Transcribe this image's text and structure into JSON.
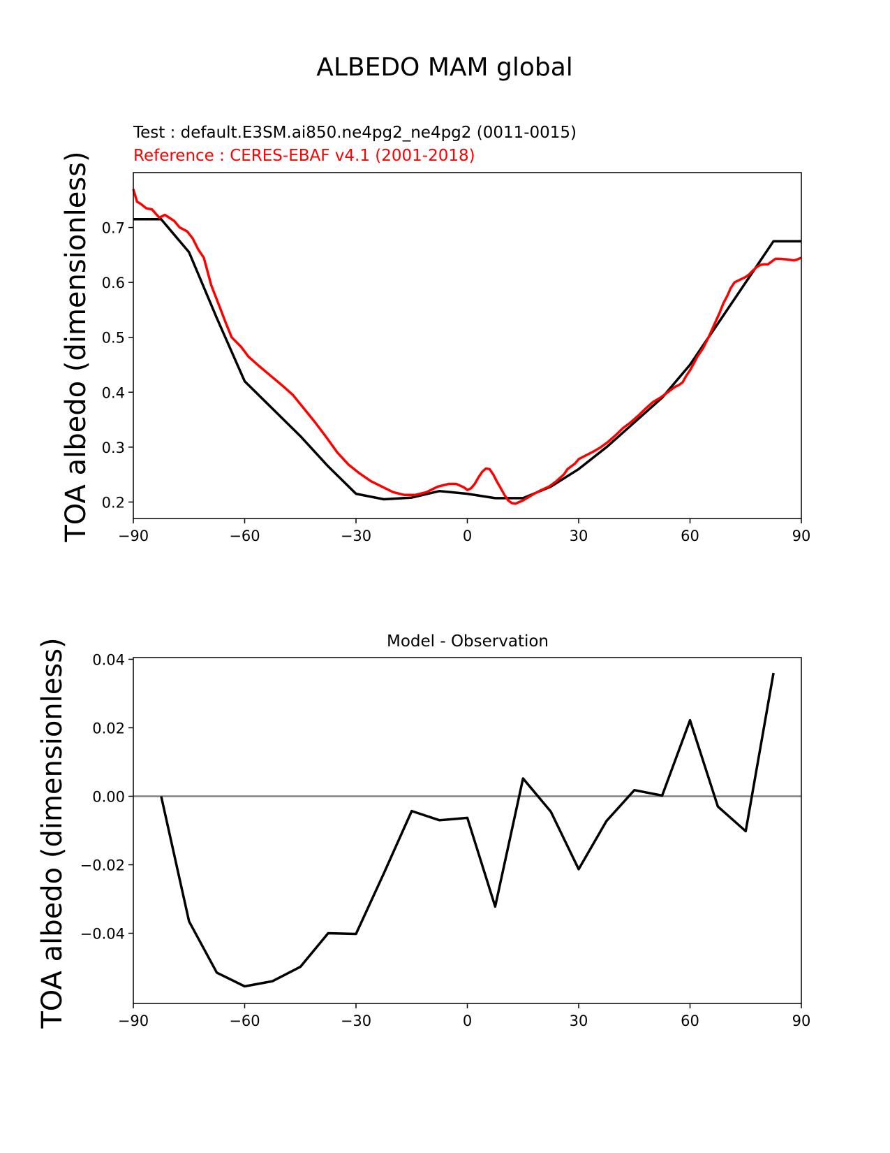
{
  "figure_title": "ALBEDO MAM global",
  "colors": {
    "test": "#000000",
    "reference": "#ff0000",
    "zero_line": "#808080"
  },
  "chart_data": [
    {
      "type": "line",
      "test_label": "Test : default.E3SM.ai850.ne4pg2_ne4pg2 (0011-0015)",
      "reference_label": "Reference : CERES-EBAF v4.1 (2001-2018)",
      "xlabel": "",
      "ylabel": "TOA albedo (dimensionless)",
      "xlim": [
        -90,
        90
      ],
      "ylim": [
        0.17,
        0.8
      ],
      "xticks": [
        -90,
        -60,
        -30,
        0,
        30,
        60,
        90
      ],
      "xtick_labels": [
        "−90",
        "−60",
        "−30",
        "0",
        "30",
        "60",
        "90"
      ],
      "yticks": [
        0.2,
        0.3,
        0.4,
        0.5,
        0.6,
        0.7
      ],
      "ytick_labels": [
        "0.2",
        "0.3",
        "0.4",
        "0.5",
        "0.6",
        "0.7"
      ],
      "series": [
        {
          "name": "Test",
          "x": [
            -90,
            -82.5,
            -75,
            -67.5,
            -60,
            -52.5,
            -45,
            -37.5,
            -30,
            -22.5,
            -15,
            -7.5,
            0,
            7.5,
            15,
            22.5,
            30,
            37.5,
            45,
            52.5,
            60,
            67.5,
            75,
            82.5,
            90
          ],
          "y": [
            0.715,
            0.715,
            0.655,
            0.535,
            0.42,
            0.37,
            0.32,
            0.265,
            0.215,
            0.205,
            0.208,
            0.22,
            0.215,
            0.207,
            0.207,
            0.228,
            0.26,
            0.3,
            0.345,
            0.39,
            0.45,
            0.525,
            0.6,
            0.675,
            0.675
          ]
        },
        {
          "name": "Reference",
          "x": [
            -90,
            -89,
            -88,
            -86.5,
            -85,
            -83,
            -81.5,
            -79,
            -77.5,
            -75.5,
            -74,
            -72.5,
            -71,
            -69,
            -67,
            -65,
            -63.5,
            -61,
            -59,
            -56,
            -53,
            -50,
            -47,
            -44,
            -41,
            -38,
            -35,
            -32,
            -29,
            -26,
            -23,
            -20,
            -17,
            -14,
            -11,
            -8,
            -5,
            -3,
            -1,
            0,
            1,
            2,
            3,
            4,
            5,
            6,
            7,
            8,
            9,
            10,
            11,
            12,
            13,
            14,
            15,
            16,
            18,
            20,
            22,
            24,
            26,
            27,
            29,
            30,
            32,
            34,
            36,
            38,
            40,
            42,
            44,
            46,
            48,
            50,
            52,
            54,
            55,
            56,
            57,
            58,
            59,
            60,
            61,
            62,
            63.5,
            65,
            66,
            67,
            68,
            69,
            70,
            71,
            72,
            73.5,
            75,
            76,
            77,
            78,
            79,
            80,
            81,
            82,
            83,
            84,
            86,
            88,
            89,
            90
          ],
          "y": [
            0.77,
            0.747,
            0.743,
            0.735,
            0.733,
            0.718,
            0.723,
            0.712,
            0.7,
            0.693,
            0.68,
            0.66,
            0.645,
            0.595,
            0.56,
            0.525,
            0.5,
            0.483,
            0.465,
            0.447,
            0.43,
            0.413,
            0.395,
            0.37,
            0.345,
            0.318,
            0.29,
            0.268,
            0.252,
            0.238,
            0.228,
            0.218,
            0.213,
            0.213,
            0.218,
            0.228,
            0.233,
            0.233,
            0.227,
            0.222,
            0.225,
            0.233,
            0.245,
            0.255,
            0.261,
            0.26,
            0.25,
            0.237,
            0.225,
            0.213,
            0.203,
            0.198,
            0.197,
            0.2,
            0.203,
            0.207,
            0.215,
            0.222,
            0.228,
            0.238,
            0.25,
            0.26,
            0.27,
            0.278,
            0.285,
            0.292,
            0.3,
            0.31,
            0.322,
            0.335,
            0.345,
            0.357,
            0.37,
            0.382,
            0.39,
            0.4,
            0.405,
            0.41,
            0.413,
            0.418,
            0.43,
            0.44,
            0.452,
            0.465,
            0.48,
            0.5,
            0.515,
            0.53,
            0.545,
            0.562,
            0.575,
            0.59,
            0.6,
            0.605,
            0.61,
            0.615,
            0.622,
            0.628,
            0.632,
            0.633,
            0.633,
            0.638,
            0.643,
            0.643,
            0.642,
            0.64,
            0.642,
            0.645
          ]
        }
      ]
    },
    {
      "type": "line",
      "title": "Model - Observation",
      "xlabel": "",
      "ylabel": "TOA albedo (dimensionless)",
      "xlim": [
        -90,
        90
      ],
      "ylim": [
        -0.0605,
        0.0405
      ],
      "xticks": [
        -90,
        -60,
        -30,
        0,
        30,
        60,
        90
      ],
      "xtick_labels": [
        "−90",
        "−60",
        "−30",
        "0",
        "30",
        "60",
        "90"
      ],
      "yticks": [
        -0.04,
        -0.02,
        0.0,
        0.02,
        0.04
      ],
      "ytick_labels": [
        "−0.04",
        "−0.02",
        "0.00",
        "0.02",
        "0.04"
      ],
      "zero_line": true,
      "series": [
        {
          "name": "Model - Observation",
          "x": [
            -82.5,
            -75,
            -67.5,
            -60,
            -52.5,
            -45,
            -37.5,
            -30,
            -22.5,
            -15,
            -7.5,
            0,
            7.5,
            15,
            22.5,
            30,
            37.5,
            45,
            52.5,
            60,
            67.5,
            75,
            82.5
          ],
          "y": [
            0.0,
            -0.0365,
            -0.0515,
            -0.0555,
            -0.054,
            -0.0498,
            -0.04,
            -0.0402,
            -0.0225,
            -0.0043,
            -0.007,
            -0.0063,
            -0.0322,
            0.0052,
            -0.0045,
            -0.0213,
            -0.0072,
            0.0018,
            0.0002,
            0.0222,
            -0.003,
            -0.0102,
            0.036
          ]
        }
      ]
    }
  ]
}
